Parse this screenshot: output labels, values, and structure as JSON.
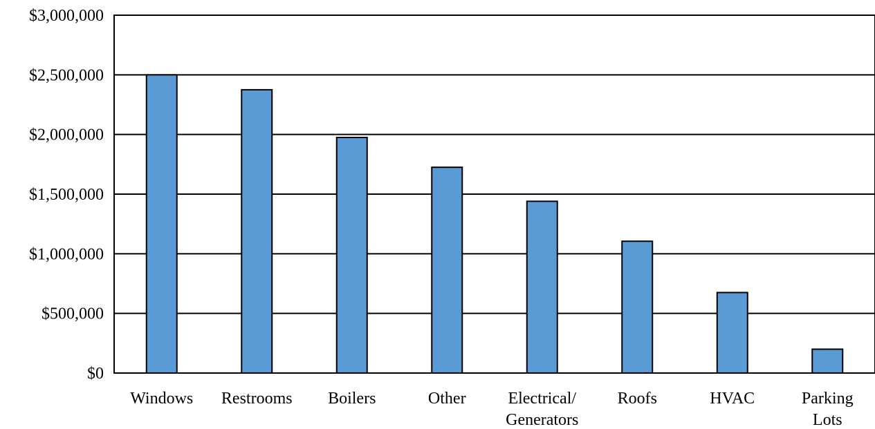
{
  "chart_data": {
    "type": "bar",
    "categories": [
      [
        "Windows"
      ],
      [
        "Restrooms"
      ],
      [
        "Boilers"
      ],
      [
        "Other"
      ],
      [
        "Electrical/",
        "Generators"
      ],
      [
        "Roofs"
      ],
      [
        "HVAC"
      ],
      [
        "Parking",
        "Lots"
      ]
    ],
    "values": [
      2500000,
      2375000,
      1975000,
      1725000,
      1440000,
      1105000,
      675000,
      200000
    ],
    "ylim": [
      0,
      3000000
    ],
    "yticks": [
      0,
      500000,
      1000000,
      1500000,
      2000000,
      2500000,
      3000000
    ],
    "ytick_labels": [
      "$0",
      "$500,000",
      "$1,000,000",
      "$1,500,000",
      "$2,000,000",
      "$2,500,000",
      "$3,000,000"
    ],
    "grid": true,
    "legend": "none",
    "bar_color": "#5b9bd5",
    "bar_edge_color": "#000000"
  }
}
